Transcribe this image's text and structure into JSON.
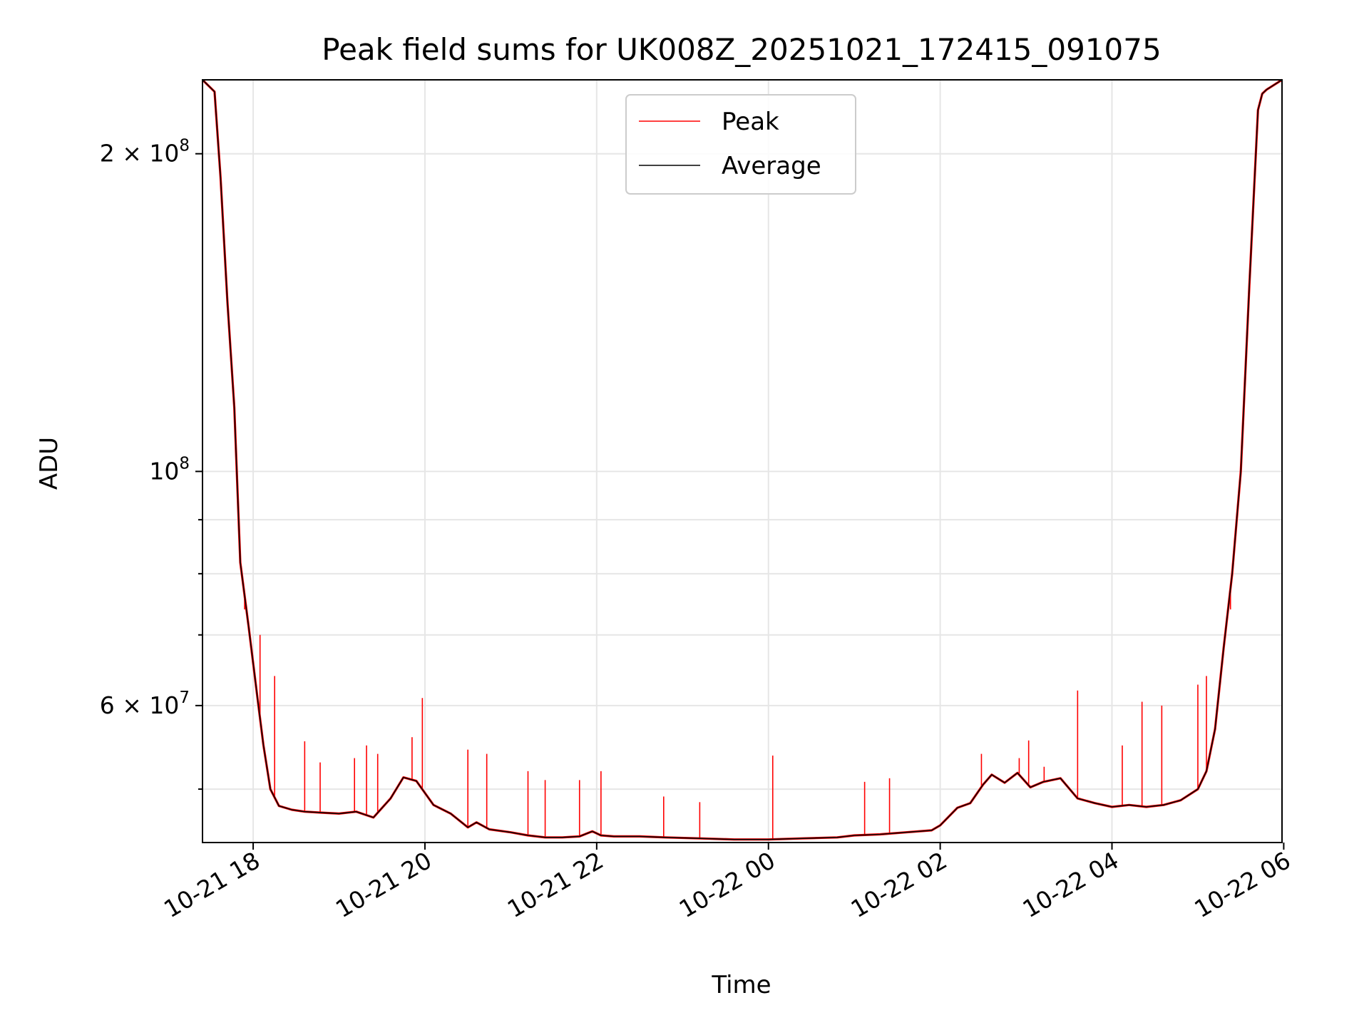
{
  "chart_data": {
    "type": "line",
    "title": "Peak field sums for UK008Z_20251021_172415_091075",
    "xlabel": "Time",
    "ylabel": "ADU",
    "yscale": "log",
    "grid": true,
    "legend_position": "upper-center",
    "x_unit": "hours since 2025-10-21 00:00",
    "xlim": [
      17.41,
      29.98
    ],
    "ylim": [
      44500000,
      235000000
    ],
    "x_ticks": [
      {
        "value": 18,
        "label": "10-21 18"
      },
      {
        "value": 20,
        "label": "10-21 20"
      },
      {
        "value": 22,
        "label": "10-21 22"
      },
      {
        "value": 24,
        "label": "10-22 00"
      },
      {
        "value": 26,
        "label": "10-22 02"
      },
      {
        "value": 28,
        "label": "10-22 04"
      },
      {
        "value": 30,
        "label": "10-22 06"
      }
    ],
    "y_major_ticks": [
      {
        "value": 60000000,
        "mantissa": "6 × 10",
        "exponent": "7"
      },
      {
        "value": 100000000,
        "mantissa": "10",
        "exponent": "8"
      },
      {
        "value": 200000000,
        "mantissa": "2 × 10",
        "exponent": "8"
      }
    ],
    "y_minor_ticks": [
      50000000,
      70000000,
      80000000,
      90000000
    ],
    "series": [
      {
        "name": "Average",
        "color": "#000000",
        "x": [
          17.41,
          17.55,
          17.62,
          17.7,
          17.78,
          17.85,
          17.95,
          18.05,
          18.12,
          18.2,
          18.3,
          18.45,
          18.6,
          18.8,
          19.0,
          19.2,
          19.4,
          19.6,
          19.75,
          19.9,
          20.1,
          20.3,
          20.5,
          20.6,
          20.75,
          21.0,
          21.2,
          21.4,
          21.6,
          21.8,
          21.95,
          22.05,
          22.2,
          22.5,
          22.8,
          23.2,
          23.6,
          24.0,
          24.4,
          24.8,
          25.0,
          25.3,
          25.6,
          25.9,
          26.0,
          26.2,
          26.35,
          26.5,
          26.6,
          26.75,
          26.9,
          27.05,
          27.2,
          27.4,
          27.6,
          27.8,
          28.0,
          28.2,
          28.4,
          28.6,
          28.8,
          29.0,
          29.1,
          29.2,
          29.3,
          29.4,
          29.5,
          29.6,
          29.7,
          29.75,
          29.8,
          29.98
        ],
        "values": [
          235000000,
          229000000,
          190000000,
          145000000,
          115000000,
          82000000,
          71000000,
          61000000,
          55000000,
          50000000,
          48200000,
          47800000,
          47600000,
          47500000,
          47400000,
          47600000,
          47000000,
          49000000,
          51300000,
          50900000,
          48300000,
          47400000,
          46000000,
          46500000,
          45800000,
          45500000,
          45200000,
          45000000,
          45000000,
          45100000,
          45600000,
          45200000,
          45100000,
          45100000,
          45000000,
          44900000,
          44800000,
          44800000,
          44900000,
          45000000,
          45200000,
          45300000,
          45500000,
          45700000,
          46200000,
          48000000,
          48500000,
          50500000,
          51600000,
          50700000,
          51800000,
          50200000,
          50800000,
          51200000,
          49000000,
          48500000,
          48100000,
          48300000,
          48100000,
          48300000,
          48800000,
          50000000,
          52000000,
          57000000,
          68000000,
          80000000,
          100000000,
          150000000,
          220000000,
          228000000,
          230000000,
          235000000
        ]
      },
      {
        "name": "Peak",
        "color": "#ff0000",
        "spikes": [
          {
            "x": 17.9,
            "y": 74000000
          },
          {
            "x": 18.08,
            "y": 70000000
          },
          {
            "x": 18.25,
            "y": 64000000
          },
          {
            "x": 18.6,
            "y": 55500000
          },
          {
            "x": 18.78,
            "y": 53000000
          },
          {
            "x": 19.18,
            "y": 53500000
          },
          {
            "x": 19.32,
            "y": 55000000
          },
          {
            "x": 19.45,
            "y": 54000000
          },
          {
            "x": 19.85,
            "y": 56000000
          },
          {
            "x": 19.97,
            "y": 61000000
          },
          {
            "x": 20.5,
            "y": 54500000
          },
          {
            "x": 20.72,
            "y": 54000000
          },
          {
            "x": 21.2,
            "y": 52000000
          },
          {
            "x": 21.4,
            "y": 51000000
          },
          {
            "x": 21.8,
            "y": 51000000
          },
          {
            "x": 22.05,
            "y": 52000000
          },
          {
            "x": 22.78,
            "y": 49200000
          },
          {
            "x": 23.2,
            "y": 48600000
          },
          {
            "x": 24.05,
            "y": 53800000
          },
          {
            "x": 25.12,
            "y": 50800000
          },
          {
            "x": 25.41,
            "y": 51200000
          },
          {
            "x": 26.48,
            "y": 54000000
          },
          {
            "x": 26.92,
            "y": 53500000
          },
          {
            "x": 27.03,
            "y": 55600000
          },
          {
            "x": 27.21,
            "y": 52500000
          },
          {
            "x": 27.6,
            "y": 62000000
          },
          {
            "x": 28.12,
            "y": 55000000
          },
          {
            "x": 28.35,
            "y": 60500000
          },
          {
            "x": 28.58,
            "y": 60000000
          },
          {
            "x": 29.0,
            "y": 62800000
          },
          {
            "x": 29.1,
            "y": 64000000
          },
          {
            "x": 29.2,
            "y": 57000000
          },
          {
            "x": 29.38,
            "y": 74000000
          }
        ]
      }
    ]
  }
}
